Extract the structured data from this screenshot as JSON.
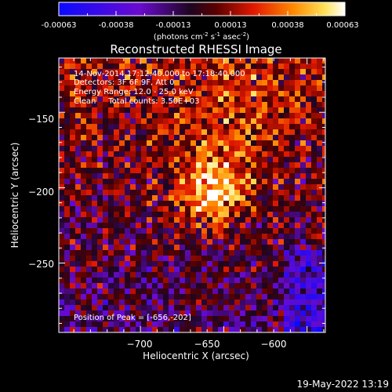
{
  "colorbar": {
    "ticks": [
      "-0.00063",
      "-0.00038",
      "-0.00013",
      "0.00013",
      "0.00038",
      "0.00063"
    ],
    "unit_prefix": "(photons cm",
    "unit_exp1": "-2",
    "unit_mid": " s",
    "unit_exp2": "-1",
    "unit_mid2": " asec",
    "unit_exp3": "-2",
    "unit_suffix": ")",
    "min": -0.00063,
    "max": 0.00063
  },
  "chart_data": {
    "type": "heatmap",
    "title": "Reconstructed RHESSI Image",
    "xlabel": "Heliocentric X (arcsec)",
    "ylabel": "Heliocentric Y (arcsec)",
    "xlim": [
      -749,
      -589
    ],
    "ylim": [
      -296,
      -114
    ],
    "x_ticks": [
      -700,
      -650,
      -600
    ],
    "y_ticks": [
      -150,
      -200,
      -250
    ],
    "x_tick_labels": [
      "−700",
      "−650",
      "−600"
    ],
    "y_tick_labels": [
      "−150",
      "−200",
      "−250"
    ],
    "colormap": "hot",
    "peak": [
      -656,
      -202
    ],
    "info_lines": [
      "14-Nov-2014 17:12:40.000 to 17:18:40.000",
      "Detectors: 3F 6F 9F, Att 0",
      "Energy Range: 12.0 - 25.0 keV",
      "Clean     Total counts: 3.50E+03"
    ],
    "peak_label": "Position of Peak = [-656,-202]"
  },
  "footer": {
    "timestamp": "19-May-2022 13:19"
  }
}
